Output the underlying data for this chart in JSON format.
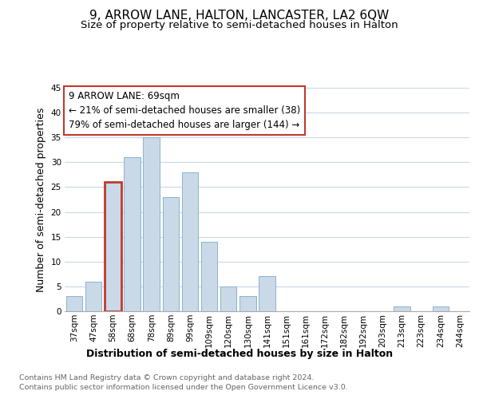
{
  "title": "9, ARROW LANE, HALTON, LANCASTER, LA2 6QW",
  "subtitle": "Size of property relative to semi-detached houses in Halton",
  "xlabel": "Distribution of semi-detached houses by size in Halton",
  "ylabel": "Number of semi-detached properties",
  "categories": [
    "37sqm",
    "47sqm",
    "58sqm",
    "68sqm",
    "78sqm",
    "89sqm",
    "99sqm",
    "109sqm",
    "120sqm",
    "130sqm",
    "141sqm",
    "151sqm",
    "161sqm",
    "172sqm",
    "182sqm",
    "192sqm",
    "203sqm",
    "213sqm",
    "223sqm",
    "234sqm",
    "244sqm"
  ],
  "values": [
    3,
    6,
    26,
    31,
    35,
    23,
    28,
    14,
    5,
    3,
    7,
    0,
    0,
    0,
    0,
    0,
    0,
    1,
    0,
    1,
    0
  ],
  "bar_color": "#c9d9e8",
  "bar_edge_color": "#8ab4cc",
  "highlight_bar_index": 2,
  "highlight_bar_edge_color": "#c0392b",
  "annotation_box_text": "9 ARROW LANE: 69sqm\n← 21% of semi-detached houses are smaller (38)\n79% of semi-detached houses are larger (144) →",
  "annotation_box_color": "#c0392b",
  "annotation_box_bg": "#ffffff",
  "ylim": [
    0,
    45
  ],
  "yticks": [
    0,
    5,
    10,
    15,
    20,
    25,
    30,
    35,
    40,
    45
  ],
  "footer_line1": "Contains HM Land Registry data © Crown copyright and database right 2024.",
  "footer_line2": "Contains public sector information licensed under the Open Government Licence v3.0.",
  "bg_color": "#ffffff",
  "grid_color": "#c8d8e8",
  "title_fontsize": 11,
  "subtitle_fontsize": 9.5,
  "axis_label_fontsize": 9,
  "tick_fontsize": 7.5,
  "annotation_fontsize": 8.5,
  "footer_fontsize": 6.8
}
